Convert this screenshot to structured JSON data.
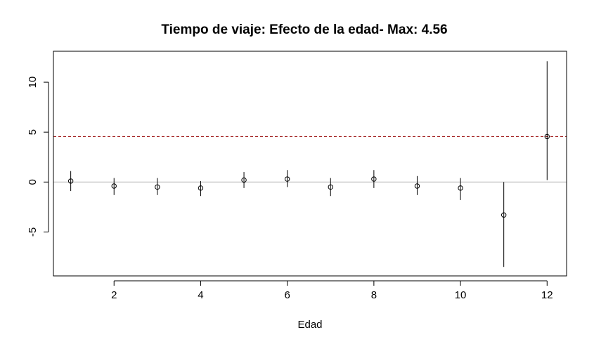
{
  "chart_data": {
    "type": "scatter",
    "title": "Tiempo de viaje: Efecto de la edad- Max: 4.56",
    "xlabel": "Edad",
    "ylabel": "",
    "xlim": [
      0.6,
      12.45
    ],
    "ylim": [
      -9.4,
      13.1
    ],
    "x_ticks": [
      2,
      4,
      6,
      8,
      10,
      12
    ],
    "y_ticks": [
      -5,
      0,
      5,
      10
    ],
    "x_tick_labels": [
      "2",
      "4",
      "6",
      "8",
      "10",
      "12"
    ],
    "y_tick_labels": [
      "-5",
      "0",
      "5",
      "10"
    ],
    "reference_lines": [
      {
        "y": 0,
        "color": "#bebebe",
        "style": "solid"
      },
      {
        "y": 4.56,
        "color": "#a52a2a",
        "style": "dashed"
      }
    ],
    "series": [
      {
        "points": [
          {
            "x": 1,
            "y": 0.1,
            "lo": -0.9,
            "hi": 1.1
          },
          {
            "x": 2,
            "y": -0.4,
            "lo": -1.3,
            "hi": 0.4
          },
          {
            "x": 3,
            "y": -0.5,
            "lo": -1.3,
            "hi": 0.4
          },
          {
            "x": 4,
            "y": -0.6,
            "lo": -1.4,
            "hi": 0.1
          },
          {
            "x": 5,
            "y": 0.2,
            "lo": -0.6,
            "hi": 1.0
          },
          {
            "x": 6,
            "y": 0.3,
            "lo": -0.5,
            "hi": 1.2
          },
          {
            "x": 7,
            "y": -0.5,
            "lo": -1.4,
            "hi": 0.4
          },
          {
            "x": 8,
            "y": 0.3,
            "lo": -0.6,
            "hi": 1.2
          },
          {
            "x": 9,
            "y": -0.4,
            "lo": -1.3,
            "hi": 0.6
          },
          {
            "x": 10,
            "y": -0.6,
            "lo": -1.8,
            "hi": 0.4
          },
          {
            "x": 11,
            "y": -3.3,
            "lo": -8.5,
            "hi": 0.0
          },
          {
            "x": 12,
            "y": 4.56,
            "lo": 0.2,
            "hi": 12.1
          }
        ]
      }
    ]
  }
}
